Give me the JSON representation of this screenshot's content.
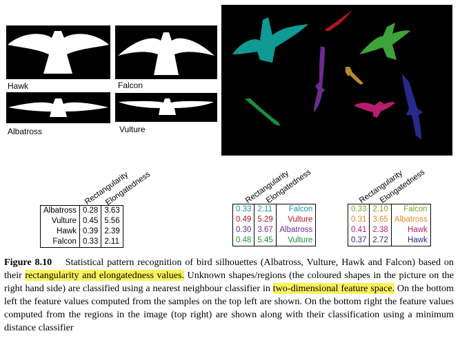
{
  "colors": {
    "highlight": "#fbf35c",
    "teal": "#0f9a94",
    "red": "#b3141b",
    "green_bright": "#3ea33a",
    "purple": "#6b2c91",
    "orange": "#b98a2a",
    "green": "#1a8f3c",
    "magenta": "#b81c70",
    "navy": "#272a8a",
    "yellowgreen": "#7aa421",
    "darkorange": "#e08a1e"
  },
  "samples": [
    {
      "label": "Hawk"
    },
    {
      "label": "Falcon"
    },
    {
      "label": "Albatross"
    },
    {
      "label": "Vulture"
    }
  ],
  "headers": {
    "rect": "Rectangularity",
    "elong": "Elongatedness"
  },
  "table_left": [
    [
      "Albatross",
      "0.28",
      "3.63"
    ],
    [
      "Vulture",
      "0.45",
      "5.56"
    ],
    [
      "Hawk",
      "0.39",
      "2.39"
    ],
    [
      "Falcon",
      "0.33",
      "2.11"
    ]
  ],
  "table_middle": [
    [
      "0.33",
      "2.11",
      "Falcon"
    ],
    [
      "0.49",
      "5.29",
      "Vulture"
    ],
    [
      "0.30",
      "3.67",
      "Albatross"
    ],
    [
      "0.48",
      "5.45",
      "Vulture"
    ]
  ],
  "table_right": [
    [
      "0.33",
      "2.10",
      "Falcon"
    ],
    [
      "0.31",
      "3.65",
      "Albatross"
    ],
    [
      "0.41",
      "2.38",
      "Hawk"
    ],
    [
      "0.37",
      "2.72",
      "Hawk"
    ]
  ],
  "caption": {
    "figure": "Figure 8.10",
    "t1": "Statistical pattern recognition of bird silhouettes (Albatross, Vulture, Hawk and Falcon) based on their ",
    "h1": "rectangularity and elongatedness values.",
    "t2": " Unknown shapes/regions (the coloured shapes in the picture on the right hand side) are classified using a nearest neighbour classifier in ",
    "h2": "two-dimensional feature space.",
    "t3": " On the bottom left the feature values computed from the samples on the top left are shown. On the bottom right the feature values computed from the regions in the image (top right) are shown along with their classification using a minimum distance classifier"
  }
}
